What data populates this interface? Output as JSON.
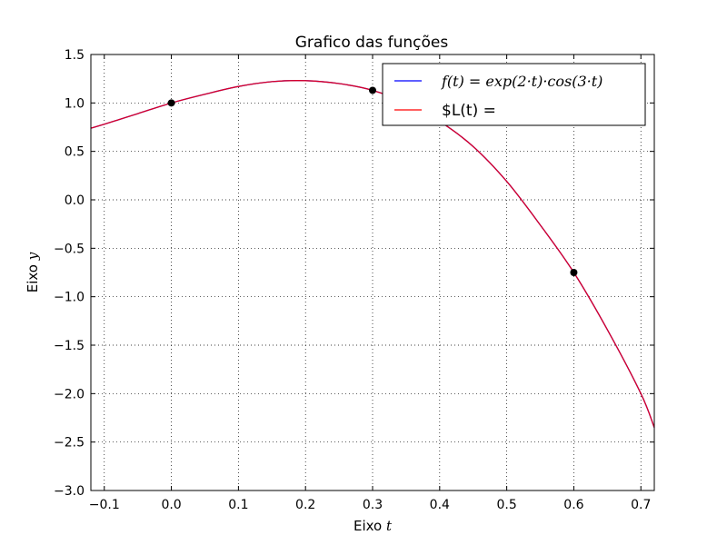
{
  "chart_data": {
    "type": "line",
    "title": "Grafico das funções",
    "xlabel": "Eixo",
    "xlabel_var": "t",
    "ylabel": "Eixo",
    "ylabel_var": "y",
    "xlim": [
      -0.12,
      0.72
    ],
    "ylim": [
      -3.0,
      1.5
    ],
    "grid": true,
    "legend_position": "top-right",
    "x_ticks": [
      -0.1,
      0.0,
      0.1,
      0.2,
      0.3,
      0.4,
      0.5,
      0.6,
      0.7
    ],
    "x_tick_labels": [
      "−0.1",
      "0.0",
      "0.1",
      "0.2",
      "0.3",
      "0.4",
      "0.5",
      "0.6",
      "0.7"
    ],
    "y_ticks": [
      1.5,
      1.0,
      0.5,
      0.0,
      -0.5,
      -1.0,
      -1.5,
      -2.0,
      -2.5,
      -3.0
    ],
    "y_tick_labels": [
      "1.5",
      "1.0",
      "0.5",
      "0.0",
      "−0.5",
      "−1.0",
      "−1.5",
      "−2.0",
      "−2.5",
      "−3.0"
    ],
    "series": [
      {
        "name": "f(t) = exp(2·t)·cos(3·t)",
        "color": "#0000ff",
        "x": [
          -0.12,
          -0.1,
          -0.05,
          0.0,
          0.05,
          0.1,
          0.15,
          0.2,
          0.25,
          0.3,
          0.35,
          0.4,
          0.45,
          0.5,
          0.55,
          0.6,
          0.65,
          0.7,
          0.72
        ],
        "y": [
          0.74,
          0.78,
          0.89,
          1.0,
          1.09,
          1.17,
          1.22,
          1.23,
          1.2,
          1.13,
          1.0,
          0.81,
          0.55,
          0.19,
          -0.26,
          -0.75,
          -1.34,
          -2.0,
          -2.35
        ]
      },
      {
        "name": "$L(t) =",
        "color": "#ff0000",
        "x": [
          -0.12,
          -0.1,
          -0.05,
          0.0,
          0.05,
          0.1,
          0.15,
          0.2,
          0.25,
          0.3,
          0.35,
          0.4,
          0.45,
          0.5,
          0.55,
          0.6,
          0.65,
          0.7,
          0.72
        ],
        "y": [
          0.74,
          0.78,
          0.89,
          1.0,
          1.09,
          1.17,
          1.22,
          1.23,
          1.2,
          1.13,
          1.0,
          0.81,
          0.55,
          0.19,
          -0.26,
          -0.75,
          -1.34,
          -2.0,
          -2.35
        ]
      }
    ],
    "points": {
      "color": "#000000",
      "x": [
        0.0,
        0.3,
        0.6
      ],
      "y": [
        1.0,
        1.13,
        -0.75
      ]
    },
    "legend": {
      "entries": [
        {
          "label_math": "f(t) = exp(2·t)·cos(3·t)",
          "color": "#0000ff"
        },
        {
          "label_plain": "$L(t) =",
          "color": "#ff0000"
        }
      ]
    }
  }
}
